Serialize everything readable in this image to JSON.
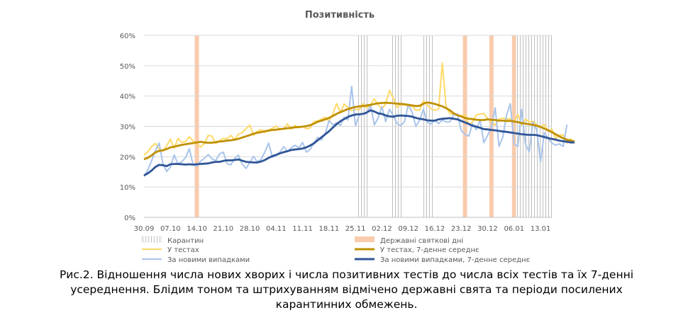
{
  "chart_data": {
    "type": "line",
    "title": "Позитивність",
    "xlabel": "",
    "ylabel": "",
    "ylim": [
      0,
      60
    ],
    "yticks": [
      "0%",
      "10%",
      "20%",
      "30%",
      "40%",
      "50%",
      "60%"
    ],
    "x_start": "30.09",
    "n_days": 109,
    "xtick_labels": [
      "30.09",
      "07.10",
      "14.10",
      "21.10",
      "28.10",
      "04.11",
      "11.11",
      "18.11",
      "25.11",
      "02.12",
      "09.12",
      "16.12",
      "23.12",
      "30.12",
      "06.01",
      "13.01"
    ],
    "grid": "horizontal",
    "legend_position": "bottom",
    "legend": {
      "quarantine": "Карантин",
      "holidays": "Державні святкові дні",
      "tests": "У тестах",
      "tests_avg": "У тестах, 7-денне середнє",
      "cases": "За новими випадками",
      "cases_avg": "За новими випадками, 7-денне середнє"
    },
    "colors": {
      "tests": "#ffd966",
      "tests_avg": "#bf9000",
      "cases": "#a9c4eb",
      "cases_avg": "#2f5597",
      "holiday": "#f8cbad",
      "grid": "#d9d9d9"
    },
    "holiday_days": [
      14,
      85,
      92,
      98
    ],
    "quarantine_periods": [
      [
        57,
        59
      ],
      [
        66,
        68
      ],
      [
        74,
        76
      ],
      [
        99,
        108
      ]
    ],
    "series": [
      {
        "key": "tests",
        "name": "У тестах",
        "values": [
          20.5,
          21.6,
          23.3,
          24.4,
          22.5,
          21.8,
          23.6,
          25.8,
          22.8,
          26,
          24.7,
          25,
          26.6,
          25.2,
          24.1,
          23.2,
          24.3,
          27,
          26.8,
          24.3,
          25.3,
          26,
          25.9,
          27,
          25.6,
          27.4,
          28,
          29.2,
          30.4,
          27.1,
          28.4,
          28.9,
          28,
          28.8,
          29.4,
          30.1,
          28.9,
          29.2,
          30.8,
          29.1,
          30.3,
          29.5,
          30,
          29.2,
          29.5,
          31.6,
          31.8,
          32.4,
          33,
          31.7,
          34.1,
          37.5,
          34.6,
          37.4,
          36.2,
          35.2,
          35.6,
          35.5,
          37.5,
          36.1,
          37.2,
          39.1,
          37.1,
          35.7,
          37.4,
          41.9,
          39.3,
          36.3,
          37.2,
          37.1,
          36.6,
          36.7,
          35.3,
          35.4,
          38.4,
          37.1,
          35.9,
          35.3,
          35.7,
          50.9,
          36.6,
          34.2,
          34,
          33.9,
          33.4,
          33.9,
          30.6,
          31.5,
          33.7,
          34.1,
          34.2,
          32.6,
          31.6,
          30.4,
          32.4,
          32.7,
          32.5,
          32.4,
          31.5,
          34,
          30.4,
          32.4,
          31.5,
          31.7,
          30.5,
          29.9,
          30.6,
          28.5,
          29.1,
          26,
          27.1,
          27.2,
          24.5,
          25.9,
          24.3
        ]
      },
      {
        "key": "tests_avg",
        "name": "У тестах, 7-денне середнє",
        "values": [
          19.2,
          19.6,
          20.4,
          21.4,
          21.9,
          22.1,
          22.5,
          23.1,
          23.3,
          23.6,
          23.9,
          24.1,
          24.3,
          24.5,
          24.7,
          24.9,
          24.7,
          24.6,
          24.6,
          24.8,
          25,
          25.1,
          25.3,
          25.4,
          25.6,
          25.9,
          26.3,
          26.7,
          27.1,
          27.6,
          27.9,
          28.1,
          28.4,
          28.6,
          28.8,
          28.9,
          29.1,
          29.2,
          29.4,
          29.5,
          29.7,
          29.8,
          29.9,
          30.1,
          30.4,
          30.9,
          31.5,
          31.9,
          32.3,
          32.8,
          33.4,
          34.1,
          34.7,
          35.2,
          35.7,
          36.1,
          36.4,
          36.6,
          36.7,
          36.9,
          37.1,
          37.4,
          37.6,
          37.7,
          37.8,
          37.7,
          37.6,
          37.5,
          37.4,
          37.3,
          37.1,
          36.9,
          36.7,
          36.8,
          37.5,
          37.9,
          37.7,
          37.4,
          37,
          36.6,
          36,
          35.3,
          34.3,
          33.7,
          33.3,
          32.8,
          32.5,
          32.4,
          32.2,
          32.1,
          32.1,
          32.3,
          32.2,
          32.1,
          31.9,
          31.9,
          31.8,
          31.8,
          31.6,
          31.4,
          31.1,
          30.9,
          30.7,
          30.5,
          30.2,
          29.8,
          29.3,
          28.7,
          28.1,
          27.4,
          26.7,
          26.1,
          25.6,
          25.3,
          25
        ]
      },
      {
        "key": "cases",
        "name": "За новими випадками",
        "values": [
          13.5,
          15.6,
          18.6,
          21.9,
          24.5,
          17.8,
          15.1,
          16.6,
          20.6,
          17.6,
          18.3,
          19.7,
          22.6,
          17.4,
          16.9,
          18.5,
          19.5,
          20.7,
          19.3,
          18.7,
          20.9,
          21.5,
          17.7,
          17.3,
          19.4,
          20.5,
          17.6,
          16.1,
          18.1,
          20.1,
          18.3,
          19.1,
          21.5,
          24.5,
          19.8,
          20.4,
          21.5,
          23.3,
          21.7,
          22.9,
          23.8,
          22.9,
          24.7,
          21.5,
          22.4,
          24.6,
          26.4,
          25.5,
          27.7,
          31.9,
          30.5,
          31.2,
          30.3,
          33,
          32.1,
          43.2,
          30.2,
          33.8,
          34.3,
          34.2,
          37,
          30.5,
          32.8,
          36.5,
          31.6,
          35.6,
          33.7,
          30.9,
          30.2,
          31.6,
          37.3,
          34.6,
          30,
          32.2,
          35.6,
          31.4,
          30.8,
          32.1,
          30.9,
          32.1,
          31.5,
          31.5,
          33.8,
          34.1,
          28.6,
          27.4,
          26.8,
          30.9,
          28.9,
          32.1,
          24.6,
          27.1,
          29.6,
          36.1,
          23.4,
          26.4,
          33.7,
          37.5,
          24.2,
          23.4,
          35.6,
          24.2,
          21.6,
          31.4,
          28.8,
          18.3,
          27.9,
          26.1,
          24.5,
          23.8,
          24.2,
          23.4,
          30.6
        ]
      },
      {
        "key": "cases_avg",
        "name": "За новими випадками, 7-денне середнє",
        "values": [
          13.8,
          14.5,
          15.4,
          16.6,
          17.3,
          17.2,
          16.9,
          17.5,
          17.6,
          17.6,
          17.5,
          17.4,
          17.5,
          17.4,
          17.5,
          17.6,
          17.7,
          17.8,
          18.1,
          18.3,
          18.3,
          18.6,
          18.8,
          18.8,
          18.9,
          19.1,
          18.7,
          18.3,
          18.2,
          18.1,
          18.1,
          18.4,
          18.9,
          19.6,
          20.2,
          20.6,
          21.1,
          21.5,
          21.8,
          22.2,
          22.4,
          22.5,
          22.7,
          23.1,
          23.7,
          24.4,
          25.4,
          26.4,
          27.4,
          28.4,
          29.6,
          30.7,
          31.7,
          32.4,
          33.1,
          33.6,
          33.9,
          34,
          34.1,
          34.6,
          35.3,
          34.9,
          34.3,
          34.1,
          33.6,
          33.3,
          33.2,
          33.5,
          33.6,
          33.5,
          33.4,
          33.2,
          32.8,
          32.5,
          32.3,
          32,
          31.9,
          31.9,
          32.3,
          32.5,
          32.6,
          32.7,
          32.5,
          32.3,
          31.8,
          31.3,
          30.8,
          30.2,
          29.9,
          29.5,
          29.1,
          29,
          28.8,
          28.7,
          28.5,
          28.3,
          28.2,
          28,
          27.8,
          27.6,
          27.4,
          27.3,
          27.2,
          27.2,
          27.1,
          26.8,
          26.5,
          26.1,
          25.9,
          25.6,
          25.3,
          25.1,
          24.9,
          24.7,
          24.7
        ]
      }
    ]
  },
  "caption_lines": [
    "Рис.2. Відношення числа нових хворих і числа позитивних тестів до числа всіх тестів та їх 7-денні",
    "усереднення. Блідим тоном та штрихуванням відмічено державні свята та періоди посилених",
    "карантинних обмежень."
  ]
}
